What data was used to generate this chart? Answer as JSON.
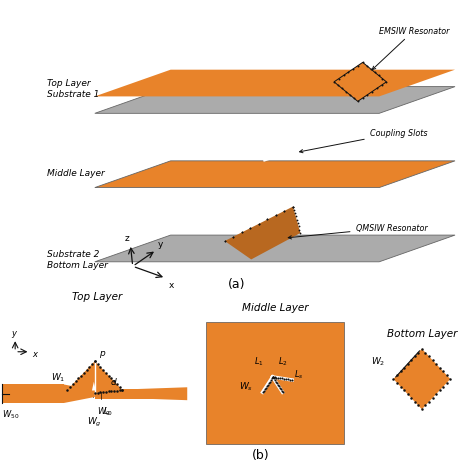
{
  "orange": "#E8832A",
  "gray": "#ABABAB",
  "brown_orange": "#B86820",
  "black": "#111111",
  "white": "#FFFFFF",
  "bg": "#FFFFFF",
  "dot_color": "#111111",
  "title_a": "(a)",
  "title_b": "(b)",
  "label_top_layer": "Top Layer\nSubstrate 1",
  "label_middle": "Middle Layer",
  "label_bottom": "Substrate 2\nBottom Layer",
  "label_emsiw": "EMSIW Resonator",
  "label_coupling": "Coupling Slots",
  "label_qmsiw": "QMSIW Resonator",
  "label_top_layer_b": "Top Layer",
  "label_middle_b": "Middle Layer",
  "label_bottom_b": "Bottom Layer"
}
